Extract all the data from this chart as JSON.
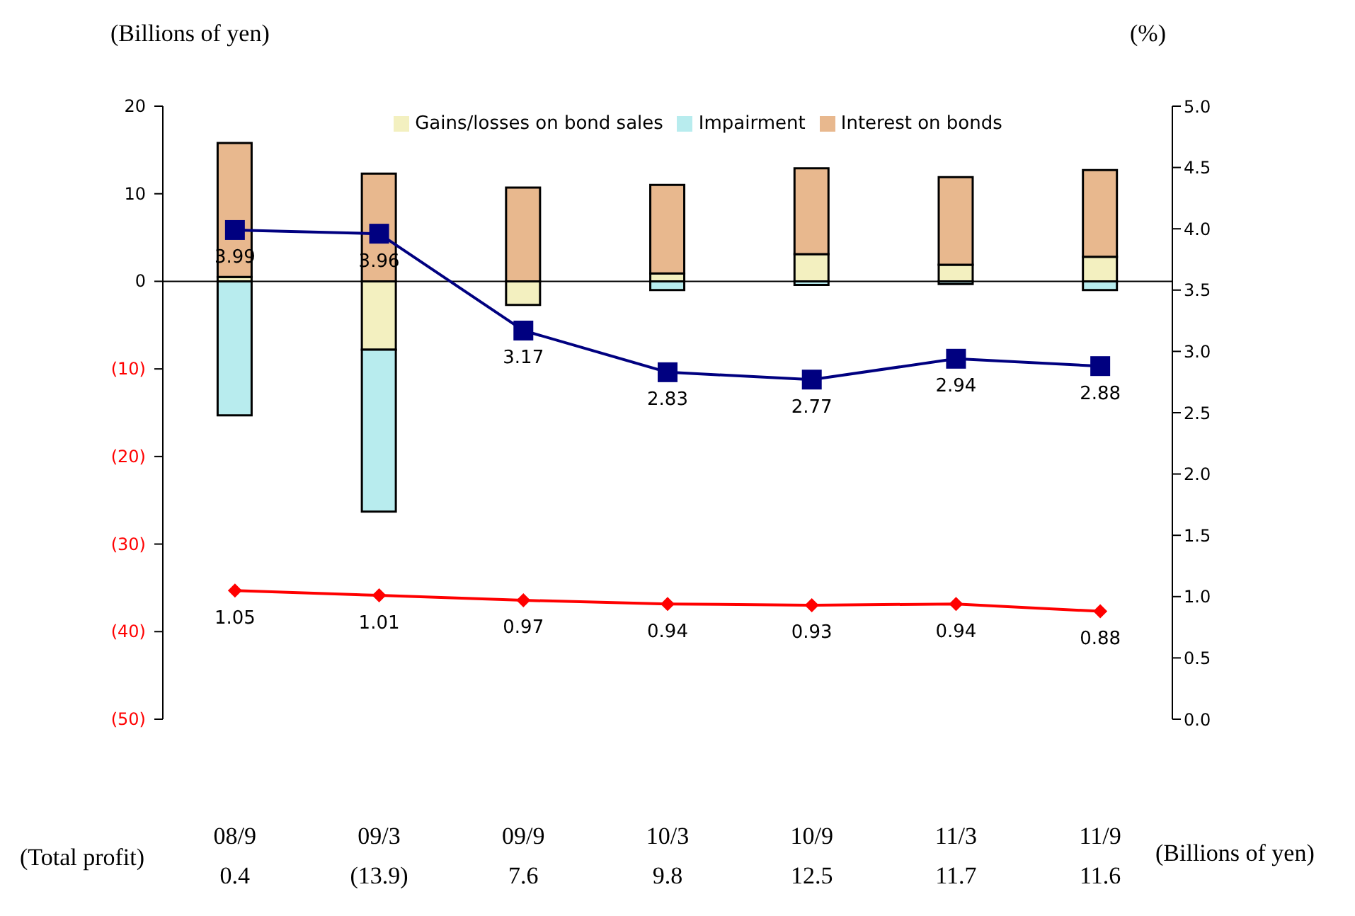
{
  "chart_data": {
    "type": "bar",
    "stacked": true,
    "ylabel": "(Billions of yen)",
    "y2label": "(%)",
    "categories": [
      "08/9",
      "09/3",
      "09/9",
      "10/3",
      "10/9",
      "11/3",
      "11/9"
    ],
    "series": [
      {
        "name": "Gains/losses on bond sales",
        "color": "#f3f0c0",
        "values": [
          0.5,
          -7.8,
          -2.7,
          0.9,
          3.1,
          1.9,
          2.8
        ]
      },
      {
        "name": "Impairment",
        "color": "#b8ecee",
        "values": [
          -15.3,
          -18.5,
          0,
          -1.0,
          -0.4,
          -0.3,
          -1.0
        ]
      },
      {
        "name": "Interest on bonds",
        "color": "#e8b88e",
        "values": [
          15.3,
          12.3,
          10.7,
          10.1,
          9.8,
          10.0,
          9.9
        ]
      },
      {
        "type": "line",
        "axis": "y2",
        "color": "#000080",
        "marker": "square",
        "values": [
          3.99,
          3.96,
          3.17,
          2.83,
          2.77,
          2.94,
          2.88
        ],
        "value_labels": [
          "3.99",
          "3.96",
          "3.17",
          "2.83",
          "2.77",
          "2.94",
          "2.88"
        ]
      },
      {
        "type": "line",
        "axis": "y2",
        "color": "#ff0000",
        "marker": "diamond",
        "values": [
          1.05,
          1.01,
          0.97,
          0.94,
          0.93,
          0.94,
          0.88
        ],
        "value_labels": [
          "1.05",
          "1.01",
          "0.97",
          "0.94",
          "0.93",
          "0.94",
          "0.88"
        ]
      }
    ],
    "ylim": [
      -50,
      20
    ],
    "yticks": [
      {
        "value": -50,
        "label": "(50)"
      },
      {
        "value": -40,
        "label": "(40)"
      },
      {
        "value": -30,
        "label": "(30)"
      },
      {
        "value": -20,
        "label": "(20)"
      },
      {
        "value": -10,
        "label": "(10)"
      },
      0,
      10,
      20
    ],
    "y2lim": [
      0,
      5
    ],
    "y2ticks": [
      {
        "value": 0,
        "label": "0.0"
      },
      {
        "value": 0.5,
        "label": "0.5"
      },
      {
        "value": 1,
        "label": "1.0"
      },
      {
        "value": 1.5,
        "label": "1.5"
      },
      {
        "value": 2,
        "label": "2.0"
      },
      {
        "value": 2.5,
        "label": "2.5"
      },
      {
        "value": 3,
        "label": "3.0"
      },
      {
        "value": 3.5,
        "label": "3.5"
      },
      {
        "value": 4,
        "label": "4.0"
      },
      {
        "value": 4.5,
        "label": "4.5"
      },
      {
        "value": 5,
        "label": "5.0"
      }
    ],
    "legend": "top",
    "annotations": [
      "(Total profit)",
      "0.4",
      "(13.9)",
      "7.6",
      "9.8",
      "12.5",
      "11.7",
      "11.6",
      "(Billions of yen)"
    ]
  }
}
